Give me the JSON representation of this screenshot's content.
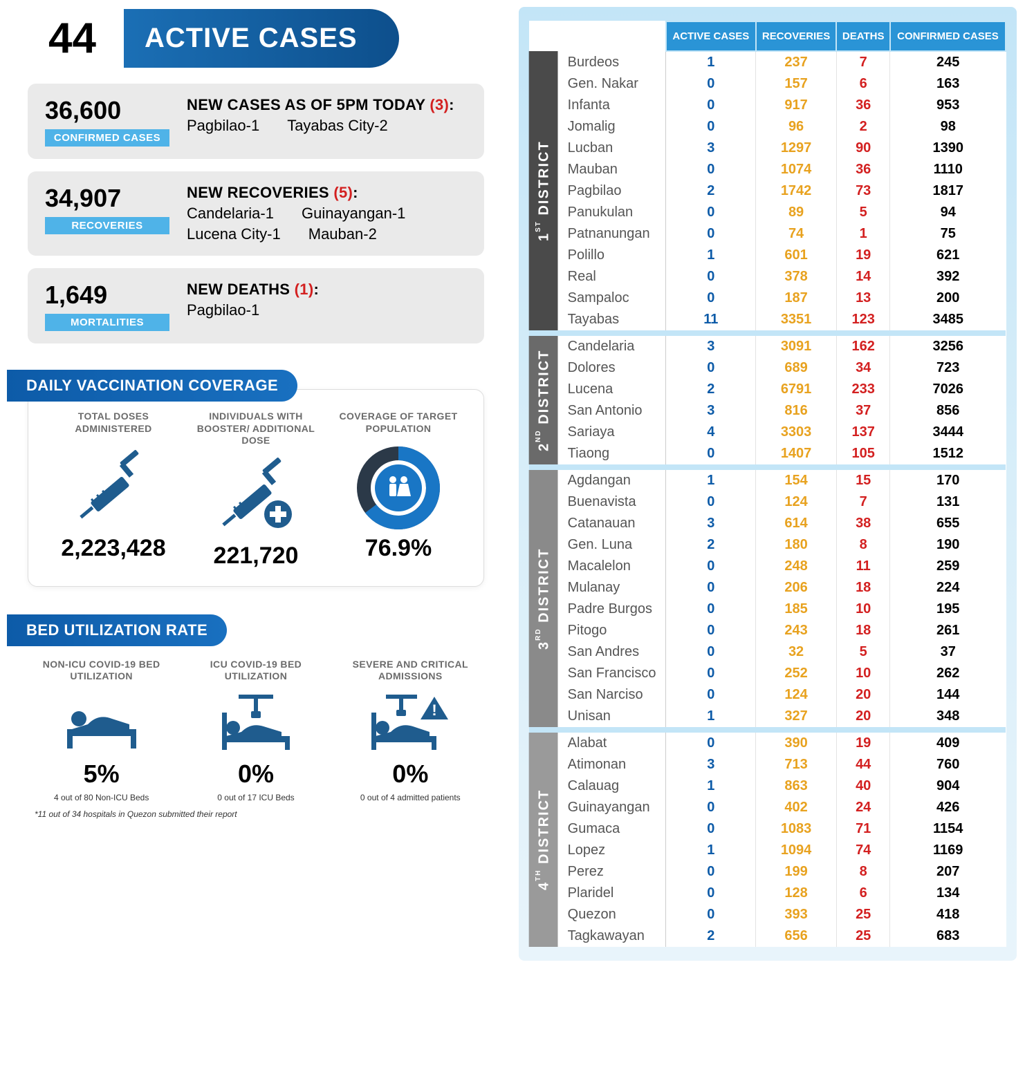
{
  "header": {
    "value": "44",
    "label": "ACTIVE CASES"
  },
  "colors": {
    "blue": "#0d5ba8",
    "orange": "#e8a21f",
    "red": "#d32020",
    "iconBlue": "#1f5c8e"
  },
  "stats": [
    {
      "num": "36,600",
      "badge": "CONFIRMED CASES",
      "title": "NEW CASES AS OF 5PM TODAY",
      "count": "(3)",
      "details": [
        "Pagbilao-1",
        "Tayabas City-2"
      ]
    },
    {
      "num": "34,907",
      "badge": "RECOVERIES",
      "title": "NEW RECOVERIES",
      "count": "(5)",
      "details": [
        "Candelaria-1",
        "Guinayangan-1",
        "Lucena City-1",
        "Mauban-2"
      ]
    },
    {
      "num": "1,649",
      "badge": "MORTALITIES",
      "title": "NEW DEATHS",
      "count": "(1)",
      "details": [
        "Pagbilao-1"
      ]
    }
  ],
  "vax": {
    "title": "DAILY VACCINATION COVERAGE",
    "items": [
      {
        "label": "TOTAL DOSES ADMINISTERED",
        "value": "2,223,428"
      },
      {
        "label": "INDIVIDUALS WITH BOOSTER/ ADDITIONAL DOSE",
        "value": "221,720"
      },
      {
        "label": "COVERAGE OF TARGET POPULATION",
        "value": "76.9%"
      }
    ]
  },
  "bed": {
    "title": "BED UTILIZATION RATE",
    "items": [
      {
        "label": "NON-ICU COVID-19 BED UTILIZATION",
        "value": "5%",
        "sub": "4 out of 80 Non-ICU Beds"
      },
      {
        "label": "ICU COVID-19 BED UTILIZATION",
        "value": "0%",
        "sub": "0 out of 17 ICU Beds"
      },
      {
        "label": "SEVERE AND CRITICAL ADMISSIONS",
        "value": "0%",
        "sub": "0  out of 4 admitted patients"
      }
    ],
    "note": "*11 out of 34 hospitals in Quezon submitted their report"
  },
  "table": {
    "headers": [
      "ACTIVE CASES",
      "RECOVERIES",
      "DEATHS",
      "CONFIRMED CASES"
    ],
    "districts": [
      {
        "name": "1ST DISTRICT",
        "class": "d1",
        "rows": [
          [
            "Burdeos",
            "1",
            "237",
            "7",
            "245"
          ],
          [
            "Gen. Nakar",
            "0",
            "157",
            "6",
            "163"
          ],
          [
            "Infanta",
            "0",
            "917",
            "36",
            "953"
          ],
          [
            "Jomalig",
            "0",
            "96",
            "2",
            "98"
          ],
          [
            "Lucban",
            "3",
            "1297",
            "90",
            "1390"
          ],
          [
            "Mauban",
            "0",
            "1074",
            "36",
            "1110"
          ],
          [
            "Pagbilao",
            "2",
            "1742",
            "73",
            "1817"
          ],
          [
            "Panukulan",
            "0",
            "89",
            "5",
            "94"
          ],
          [
            "Patnanungan",
            "0",
            "74",
            "1",
            "75"
          ],
          [
            "Polillo",
            "1",
            "601",
            "19",
            "621"
          ],
          [
            "Real",
            "0",
            "378",
            "14",
            "392"
          ],
          [
            "Sampaloc",
            "0",
            "187",
            "13",
            "200"
          ],
          [
            "Tayabas",
            "11",
            "3351",
            "123",
            "3485"
          ]
        ]
      },
      {
        "name": "2ND DISTRICT",
        "class": "d2",
        "rows": [
          [
            "Candelaria",
            "3",
            "3091",
            "162",
            "3256"
          ],
          [
            "Dolores",
            "0",
            "689",
            "34",
            "723"
          ],
          [
            "Lucena",
            "2",
            "6791",
            "233",
            "7026"
          ],
          [
            "San Antonio",
            "3",
            "816",
            "37",
            "856"
          ],
          [
            "Sariaya",
            "4",
            "3303",
            "137",
            "3444"
          ],
          [
            "Tiaong",
            "0",
            "1407",
            "105",
            "1512"
          ]
        ]
      },
      {
        "name": "3RD DISTRICT",
        "class": "d3",
        "rows": [
          [
            "Agdangan",
            "1",
            "154",
            "15",
            "170"
          ],
          [
            "Buenavista",
            "0",
            "124",
            "7",
            "131"
          ],
          [
            "Catanauan",
            "3",
            "614",
            "38",
            "655"
          ],
          [
            "Gen. Luna",
            "2",
            "180",
            "8",
            "190"
          ],
          [
            "Macalelon",
            "0",
            "248",
            "11",
            "259"
          ],
          [
            "Mulanay",
            "0",
            "206",
            "18",
            "224"
          ],
          [
            "Padre Burgos",
            "0",
            "185",
            "10",
            "195"
          ],
          [
            "Pitogo",
            "0",
            "243",
            "18",
            "261"
          ],
          [
            "San Andres",
            "0",
            "32",
            "5",
            "37"
          ],
          [
            "San Francisco",
            "0",
            "252",
            "10",
            "262"
          ],
          [
            "San Narciso",
            "0",
            "124",
            "20",
            "144"
          ],
          [
            "Unisan",
            "1",
            "327",
            "20",
            "348"
          ]
        ]
      },
      {
        "name": "4TH DISTRICT",
        "class": "d4",
        "rows": [
          [
            "Alabat",
            "0",
            "390",
            "19",
            "409"
          ],
          [
            "Atimonan",
            "3",
            "713",
            "44",
            "760"
          ],
          [
            "Calauag",
            "1",
            "863",
            "40",
            "904"
          ],
          [
            "Guinayangan",
            "0",
            "402",
            "24",
            "426"
          ],
          [
            "Gumaca",
            "0",
            "1083",
            "71",
            "1154"
          ],
          [
            "Lopez",
            "1",
            "1094",
            "74",
            "1169"
          ],
          [
            "Perez",
            "0",
            "199",
            "8",
            "207"
          ],
          [
            "Plaridel",
            "0",
            "128",
            "6",
            "134"
          ],
          [
            "Quezon",
            "0",
            "393",
            "25",
            "418"
          ],
          [
            "Tagkawayan",
            "2",
            "656",
            "25",
            "683"
          ]
        ]
      }
    ]
  }
}
